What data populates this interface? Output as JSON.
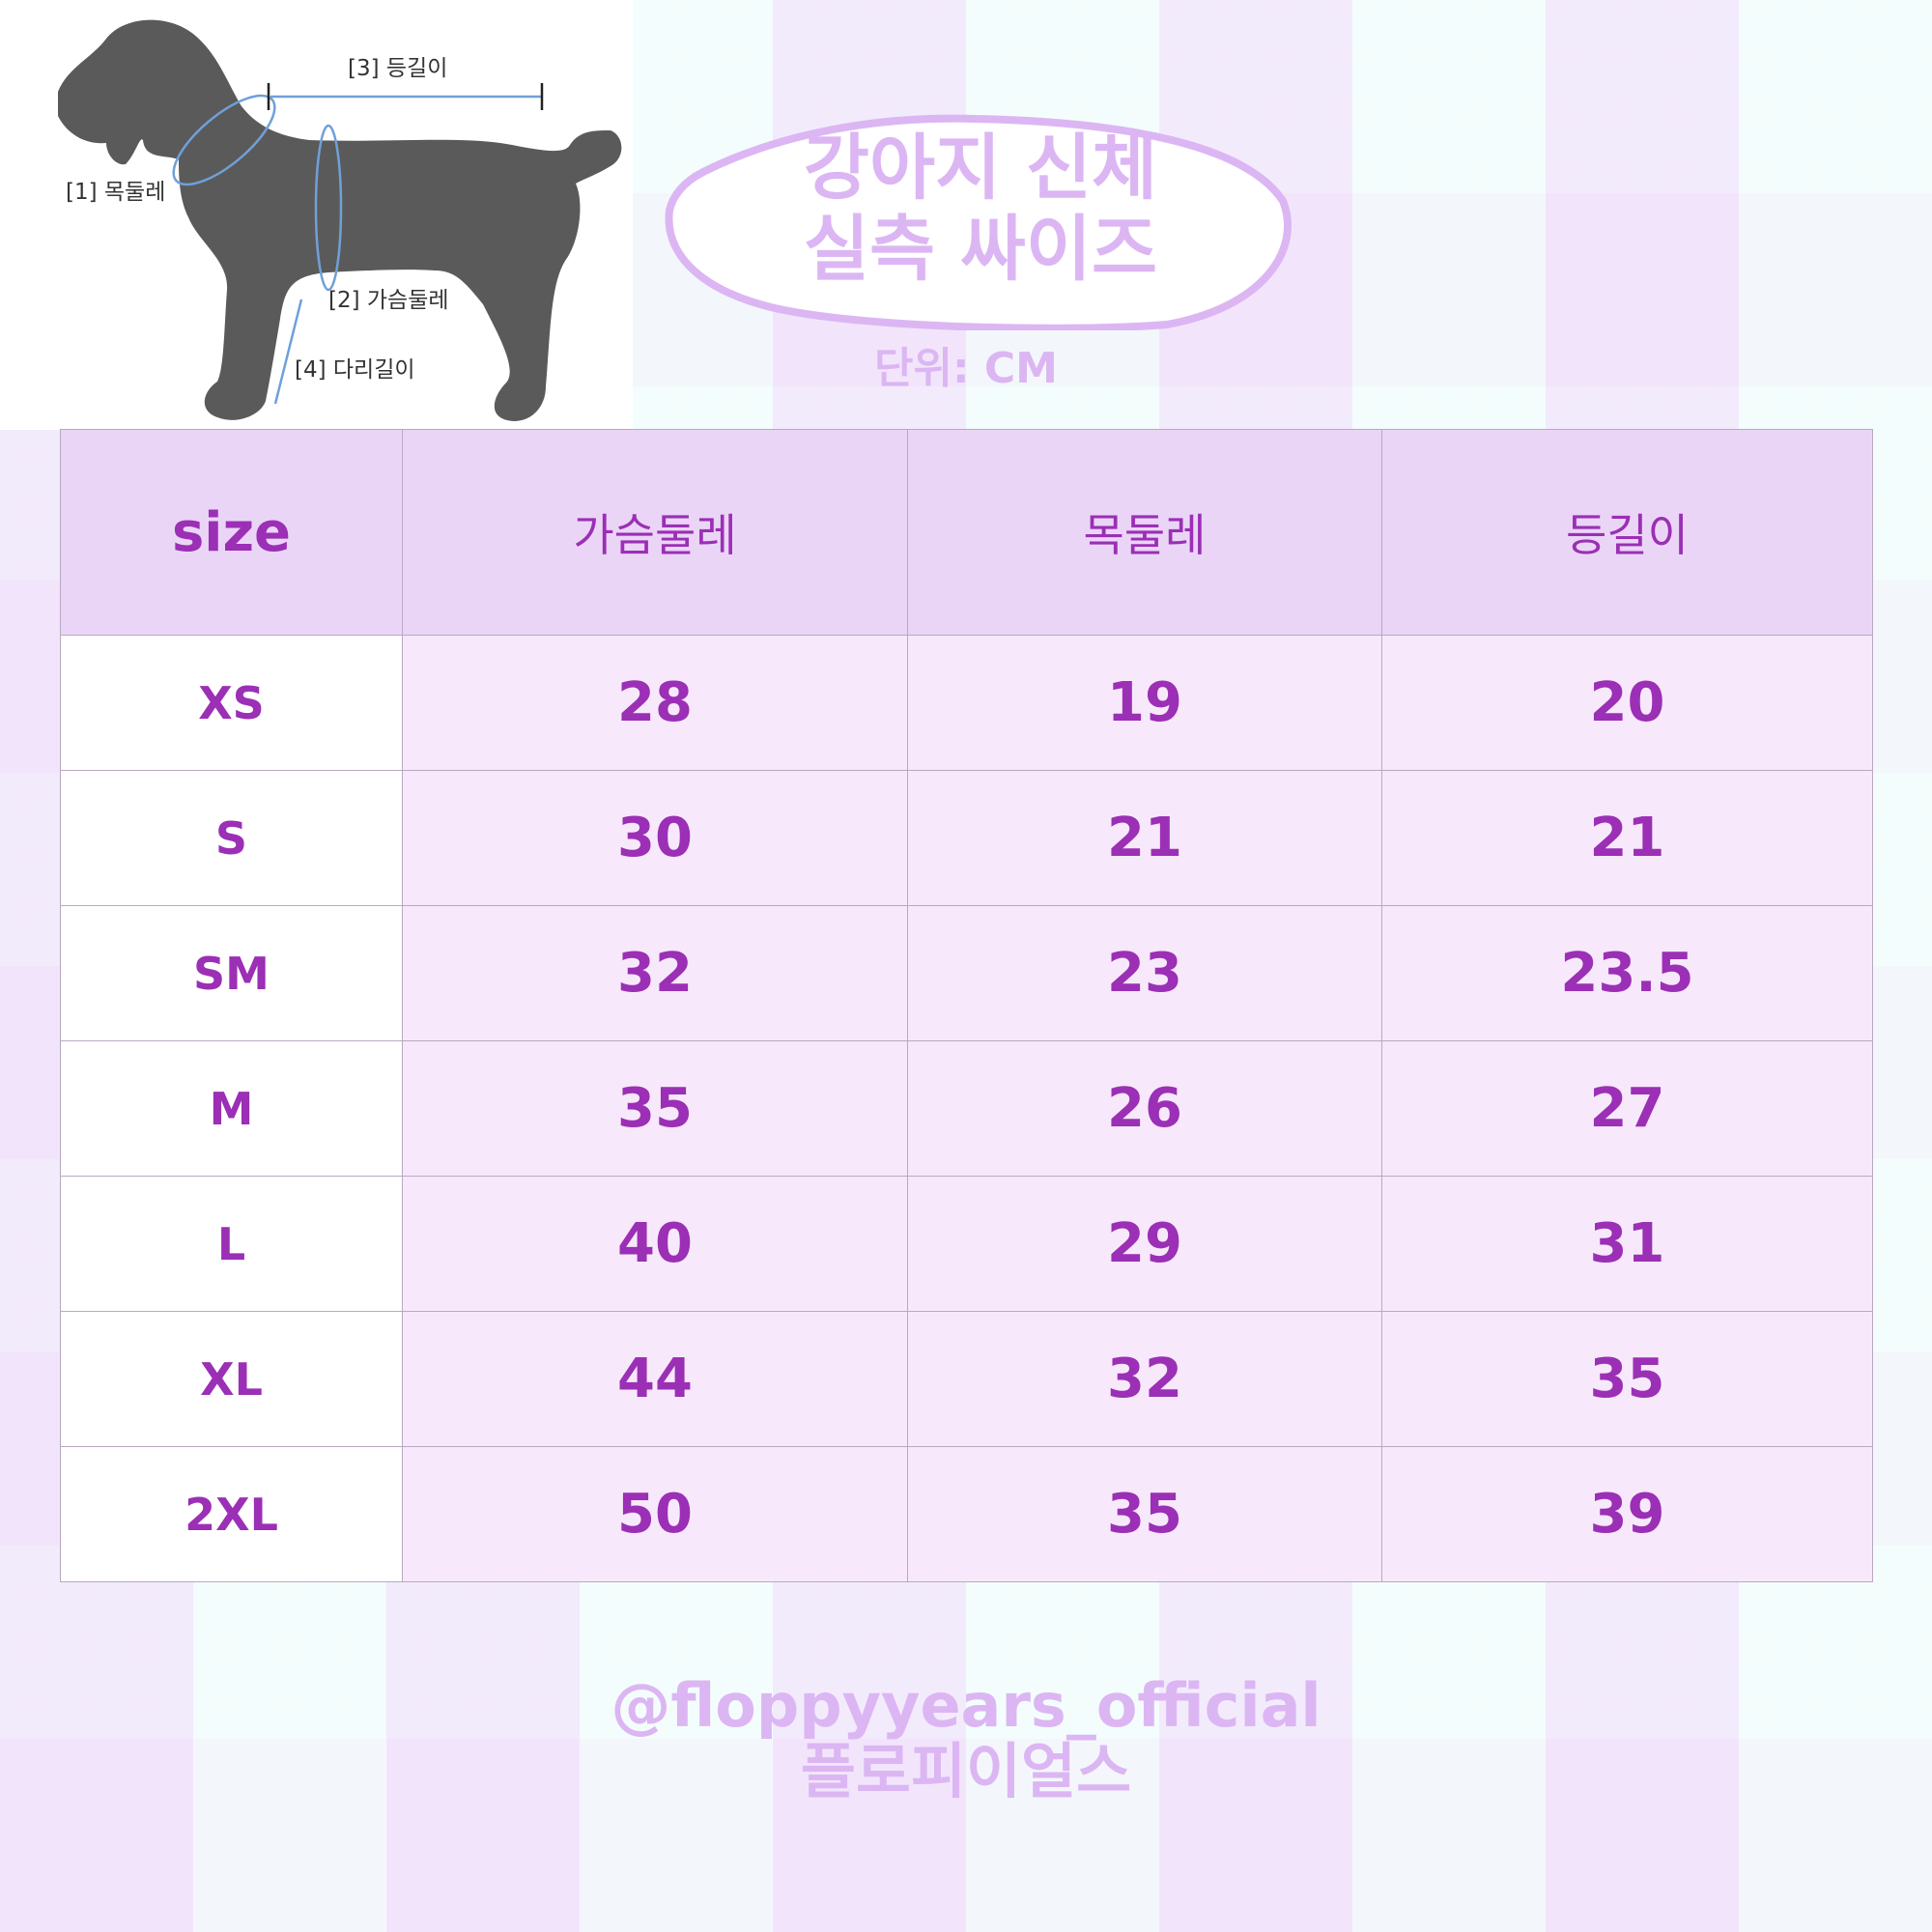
{
  "diagram": {
    "labels": [
      "[1] 목둘레",
      "[2] 가슴둘레",
      "[3] 등길이",
      "[4] 다리길이"
    ]
  },
  "title": {
    "line1": "강아지 신체",
    "line2": "실측 싸이즈",
    "unit": "단위: CM"
  },
  "table": {
    "headers": [
      "size",
      "가슴둘레",
      "목둘레",
      "등길이"
    ],
    "rows": [
      [
        "XS",
        "28",
        "19",
        "20"
      ],
      [
        "S",
        "30",
        "21",
        "21"
      ],
      [
        "SM",
        "32",
        "23",
        "23.5"
      ],
      [
        "M",
        "35",
        "26",
        "27"
      ],
      [
        "L",
        "40",
        "29",
        "31"
      ],
      [
        "XL",
        "44",
        "32",
        "35"
      ],
      [
        "2XL",
        "50",
        "35",
        "39"
      ]
    ]
  },
  "footer": {
    "handle": "@floppyyears_official",
    "brand": "플로피이얼스"
  },
  "colors": {
    "accent": "#9b2fb5",
    "title": "#dcb6f3",
    "header_bg": "#ead5f7",
    "cell_bg": "#f7e9fb",
    "dog": "#5a5a5a",
    "measure": "#6fa0d8"
  }
}
